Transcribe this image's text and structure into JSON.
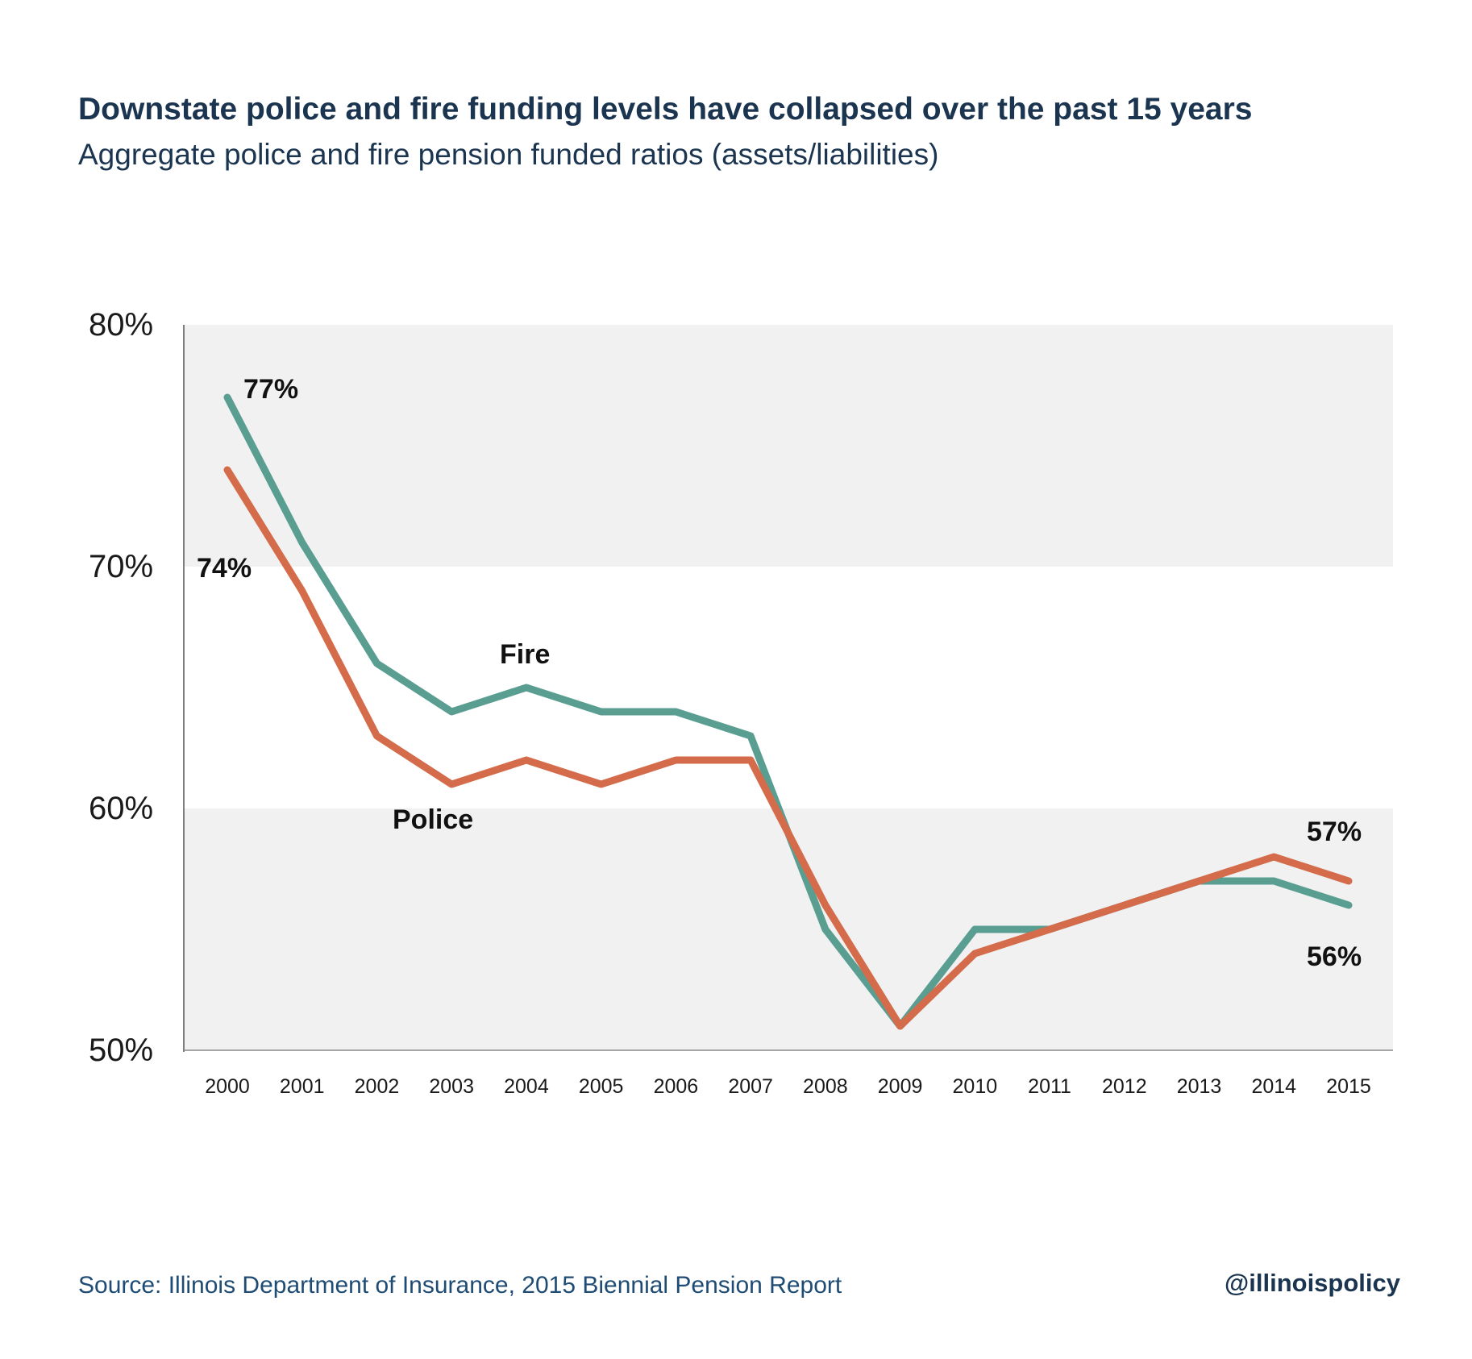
{
  "header": {
    "title": "Downstate police and fire funding levels have collapsed over the past 15 years",
    "subtitle": "Aggregate police and fire pension funded ratios (assets/liabilities)"
  },
  "footer": {
    "source": "Source: Illinois Department of Insurance, 2015 Biennial Pension Report",
    "handle": "@illinoispolicy"
  },
  "chart_data": {
    "type": "line",
    "x": [
      "2000",
      "2001",
      "2002",
      "2003",
      "2004",
      "2005",
      "2006",
      "2007",
      "2008",
      "2009",
      "2010",
      "2011",
      "2012",
      "2013",
      "2014",
      "2015"
    ],
    "ylim": [
      50,
      80
    ],
    "yticks": [
      "80%",
      "70%",
      "60%",
      "50%"
    ],
    "yticks_values": [
      80,
      70,
      60,
      50
    ],
    "grid": false,
    "band_color": "#f1f1f1",
    "series": [
      {
        "name": "Fire",
        "color": "#5a9e92",
        "values": [
          77,
          71,
          66,
          64,
          65,
          64,
          64,
          63,
          55,
          51,
          55,
          55,
          56,
          57,
          57,
          56
        ]
      },
      {
        "name": "Police",
        "color": "#d46b4a",
        "values": [
          74,
          69,
          63,
          61,
          62,
          61,
          62,
          62,
          56,
          51,
          54,
          55,
          56,
          57,
          58,
          57
        ]
      }
    ],
    "annotations": [
      {
        "text": "77%",
        "series": 0,
        "index": 0
      },
      {
        "text": "74%",
        "series": 1,
        "index": 0
      },
      {
        "text": "57%",
        "series": 1,
        "index": 15
      },
      {
        "text": "56%",
        "series": 0,
        "index": 15
      }
    ]
  }
}
